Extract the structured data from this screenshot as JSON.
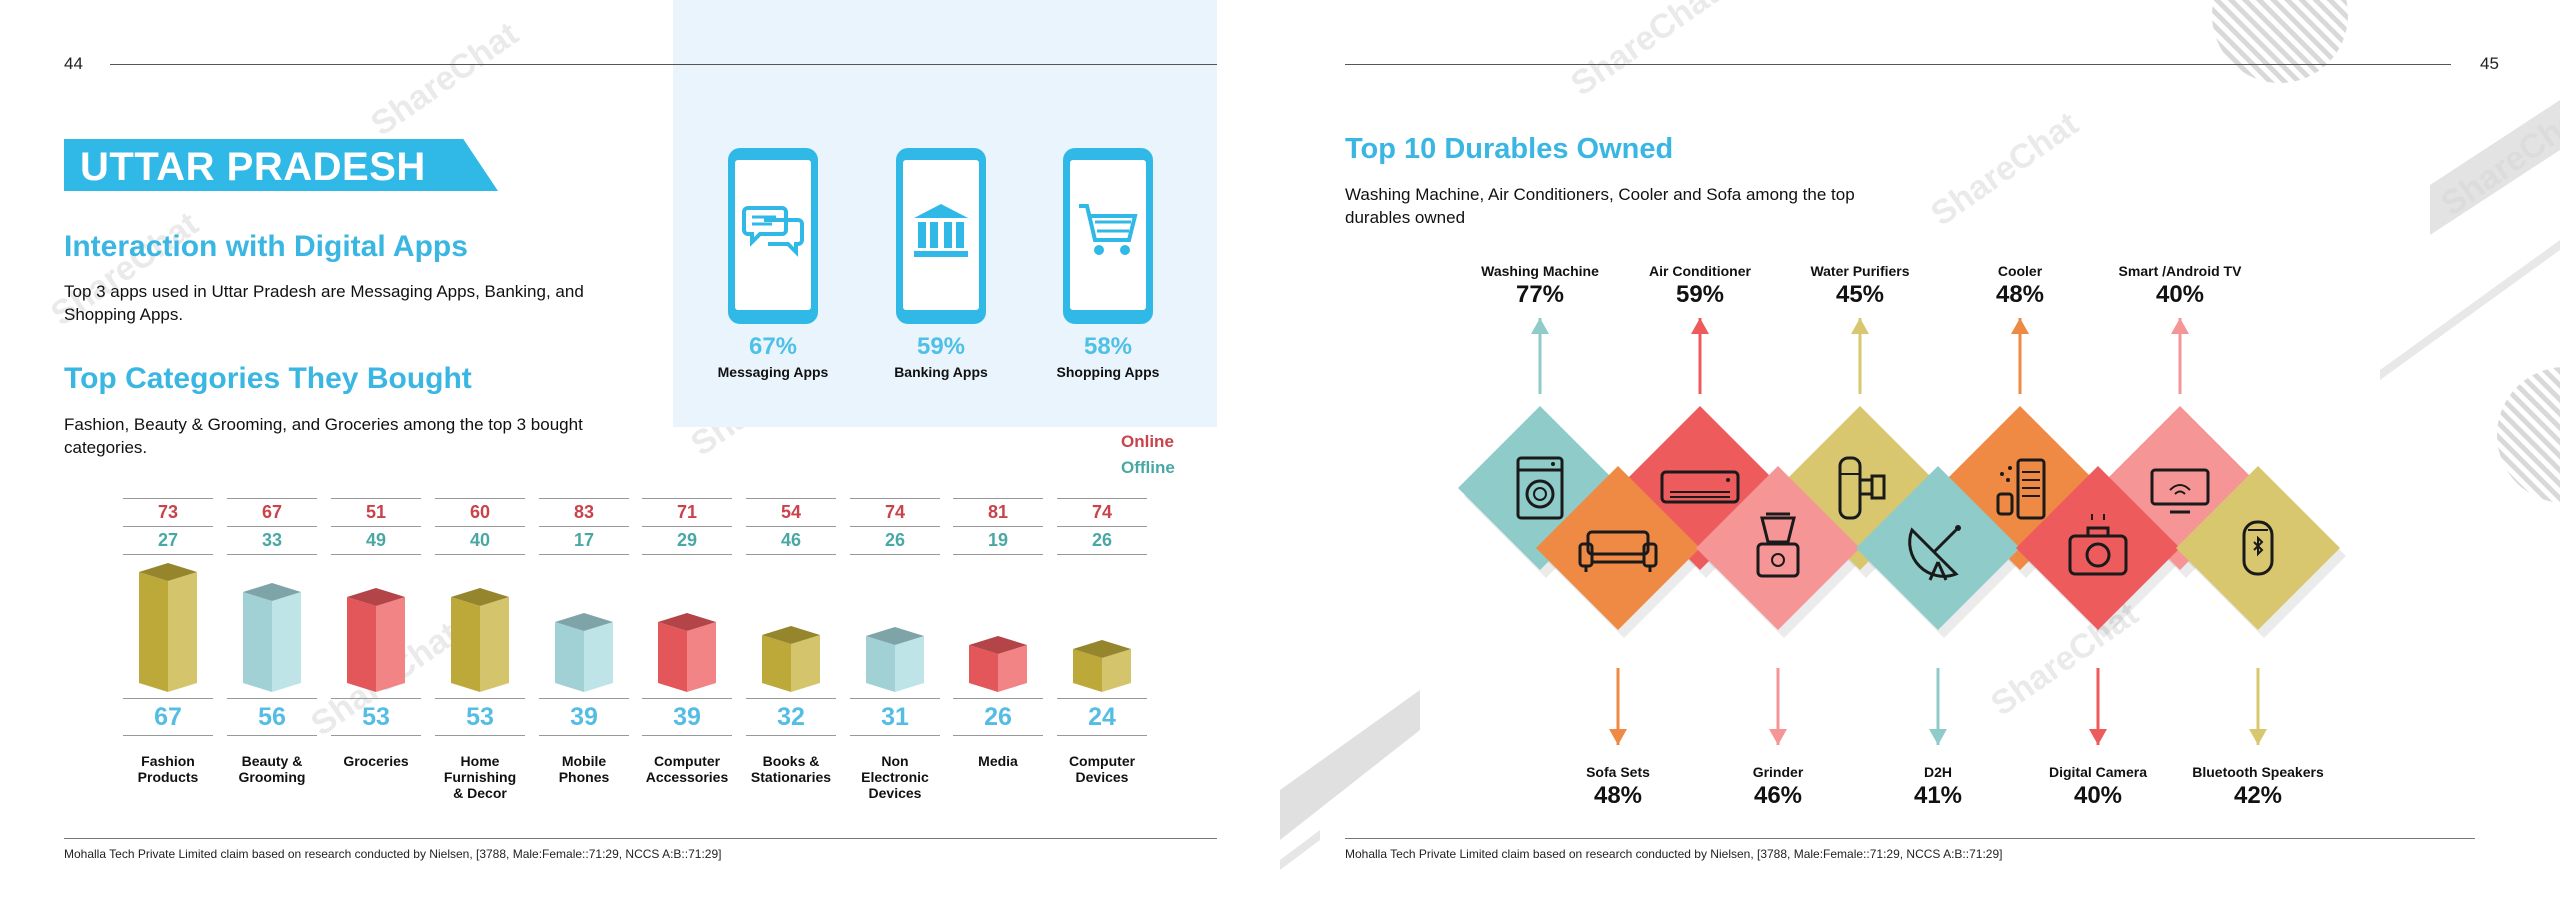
{
  "left_page": {
    "page_number": "44",
    "banner_title": "UTTAR PRADESH",
    "interaction_heading": "Interaction with Digital Apps",
    "interaction_text": "Top 3 apps used in Uttar Pradesh are Messaging Apps, Banking, and Shopping Apps.",
    "categories_heading": "Top Categories They Bought",
    "categories_text": "Fashion, Beauty & Grooming, and Groceries among the top 3 bought categories.",
    "apps": [
      {
        "percent": "67%",
        "label": "Messaging Apps",
        "icon": "chat-bubbles-icon"
      },
      {
        "percent": "59%",
        "label": "Banking Apps",
        "icon": "bank-icon"
      },
      {
        "percent": "58%",
        "label": "Shopping Apps",
        "icon": "shopping-cart-icon"
      }
    ],
    "legend": {
      "online": "Online",
      "offline": "Offline"
    },
    "footer": "Mohalla Tech Private Limited claim based on research conducted by Nielsen, [3788, Male:Female::71:29, NCCS A:B::71:29]"
  },
  "right_page": {
    "page_number": "45",
    "heading": "Top 10 Durables Owned",
    "text": "Washing Machine, Air Conditioners, Cooler and Sofa among the top durables owned",
    "durables_top": [
      {
        "label": "Washing Machine",
        "percent": "77%",
        "icon": "washing-machine-icon"
      },
      {
        "label": "Air Conditioner",
        "percent": "59%",
        "icon": "air-conditioner-icon"
      },
      {
        "label": "Water Purifiers",
        "percent": "45%",
        "icon": "water-purifier-icon"
      },
      {
        "label": "Cooler",
        "percent": "48%",
        "icon": "cooler-icon"
      },
      {
        "label": "Smart /Android TV",
        "percent": "40%",
        "icon": "tv-icon"
      }
    ],
    "durables_bottom": [
      {
        "label": "Sofa Sets",
        "percent": "48%",
        "icon": "sofa-icon"
      },
      {
        "label": "Grinder",
        "percent": "46%",
        "icon": "grinder-icon"
      },
      {
        "label": "D2H",
        "percent": "41%",
        "icon": "satellite-dish-icon"
      },
      {
        "label": "Digital Camera",
        "percent": "40%",
        "icon": "camera-icon"
      },
      {
        "label": "Bluetooth Speakers",
        "percent": "42%",
        "icon": "speaker-icon"
      }
    ],
    "footer": "Mohalla Tech Private Limited claim based on research conducted by Nielsen, [3788, Male:Female::71:29, NCCS A:B::71:29]"
  },
  "colors": {
    "accent_blue": "#30b9e6",
    "online_red": "#c9434b",
    "offline_teal": "#4aa8a4",
    "cube_colors": [
      "#c6b23c",
      "#a9dbe0",
      "#ef5b5e",
      "#c6b23c",
      "#a9dbe0",
      "#ef5b5e",
      "#c6b23c",
      "#a9dbe0",
      "#ef5b5e",
      "#c6b23c"
    ],
    "diamond_top": [
      "#8ecbc9",
      "#ee5b5d",
      "#d8c76f",
      "#ef8a44",
      "#f59595"
    ],
    "diamond_bottom": [
      "#ef8a44",
      "#f59595",
      "#8ecbc9",
      "#ee5b5d",
      "#d8c76f"
    ]
  },
  "chart_data": {
    "type": "bar",
    "title": "Top Categories They Bought",
    "categories": [
      "Fashion\nProducts",
      "Beauty &\nGrooming",
      "Groceries",
      "Home\nFurnishing\n& Decor",
      "Mobile\nPhones",
      "Computer\nAccessories",
      "Books &\nStationaries",
      "Non\nElectronic\nDevices",
      "Media",
      "Computer\nDevices"
    ],
    "values": [
      67,
      56,
      53,
      53,
      39,
      39,
      32,
      31,
      26,
      24
    ],
    "online": [
      73,
      67,
      51,
      60,
      83,
      71,
      54,
      74,
      81,
      74
    ],
    "offline": [
      27,
      33,
      49,
      40,
      17,
      29,
      46,
      26,
      19,
      26
    ]
  }
}
